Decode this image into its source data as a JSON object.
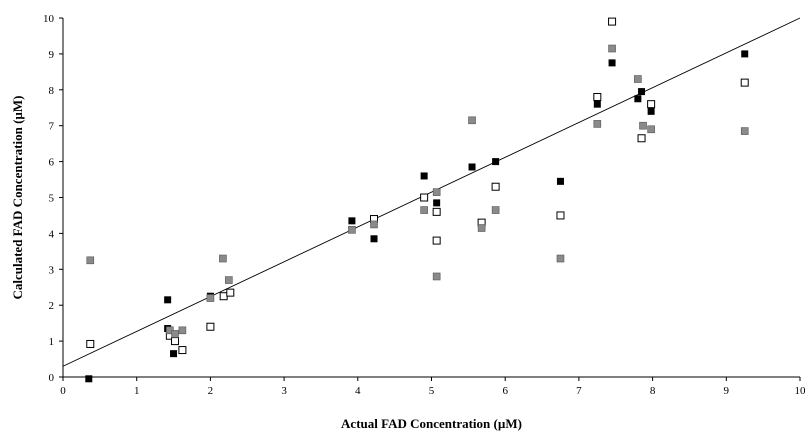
{
  "chart_data": {
    "type": "scatter",
    "xlabel": "Actual FAD Concentration (µM)",
    "ylabel": "Calculated FAD Concentration (µM)",
    "xlim": [
      0,
      10
    ],
    "ylim": [
      0,
      10
    ],
    "xticks": [
      0,
      1,
      2,
      3,
      4,
      5,
      6,
      7,
      8,
      9,
      10
    ],
    "yticks": [
      0,
      1,
      2,
      3,
      4,
      5,
      6,
      7,
      8,
      9,
      10
    ],
    "grid": false,
    "legend": "none",
    "reference_line": {
      "x": [
        0,
        10
      ],
      "y": [
        0.3,
        10.0
      ],
      "color": "#000000"
    },
    "series": [
      {
        "marker": "filled-square",
        "color": "#000000",
        "points": [
          [
            0.35,
            -0.05
          ],
          [
            1.42,
            2.15
          ],
          [
            1.42,
            1.35
          ],
          [
            1.5,
            0.65
          ],
          [
            2.0,
            2.25
          ],
          [
            3.92,
            4.35
          ],
          [
            4.22,
            3.85
          ],
          [
            4.22,
            4.3
          ],
          [
            4.9,
            5.6
          ],
          [
            5.07,
            4.85
          ],
          [
            5.55,
            5.85
          ],
          [
            5.87,
            6.0
          ],
          [
            6.75,
            5.45
          ],
          [
            7.25,
            7.6
          ],
          [
            7.45,
            8.75
          ],
          [
            7.8,
            7.75
          ],
          [
            7.85,
            7.95
          ],
          [
            7.98,
            7.4
          ],
          [
            9.25,
            9.0
          ]
        ]
      },
      {
        "marker": "open-square",
        "color": "#000000",
        "points": [
          [
            0.37,
            0.92
          ],
          [
            1.45,
            1.15
          ],
          [
            1.52,
            1.0
          ],
          [
            1.62,
            0.75
          ],
          [
            2.0,
            1.4
          ],
          [
            2.18,
            2.25
          ],
          [
            2.27,
            2.35
          ],
          [
            4.22,
            4.4
          ],
          [
            4.9,
            5.0
          ],
          [
            5.07,
            4.6
          ],
          [
            5.07,
            3.8
          ],
          [
            5.68,
            4.3
          ],
          [
            5.87,
            5.3
          ],
          [
            6.75,
            4.5
          ],
          [
            7.25,
            7.8
          ],
          [
            7.45,
            9.9
          ],
          [
            7.85,
            6.65
          ],
          [
            7.98,
            7.6
          ],
          [
            9.25,
            8.2
          ]
        ]
      },
      {
        "marker": "gray-square",
        "color": "#8a8a8a",
        "points": [
          [
            0.37,
            3.25
          ],
          [
            1.45,
            1.3
          ],
          [
            1.52,
            1.2
          ],
          [
            1.62,
            1.3
          ],
          [
            2.0,
            2.2
          ],
          [
            2.17,
            3.3
          ],
          [
            2.25,
            2.7
          ],
          [
            3.92,
            4.1
          ],
          [
            4.22,
            4.25
          ],
          [
            4.9,
            4.65
          ],
          [
            5.07,
            5.15
          ],
          [
            5.07,
            2.8
          ],
          [
            5.55,
            7.15
          ],
          [
            5.68,
            4.15
          ],
          [
            5.87,
            4.65
          ],
          [
            6.75,
            3.3
          ],
          [
            7.25,
            7.05
          ],
          [
            7.45,
            9.15
          ],
          [
            7.8,
            8.3
          ],
          [
            7.87,
            7.0
          ],
          [
            7.98,
            6.9
          ],
          [
            9.25,
            6.85
          ]
        ]
      }
    ]
  }
}
